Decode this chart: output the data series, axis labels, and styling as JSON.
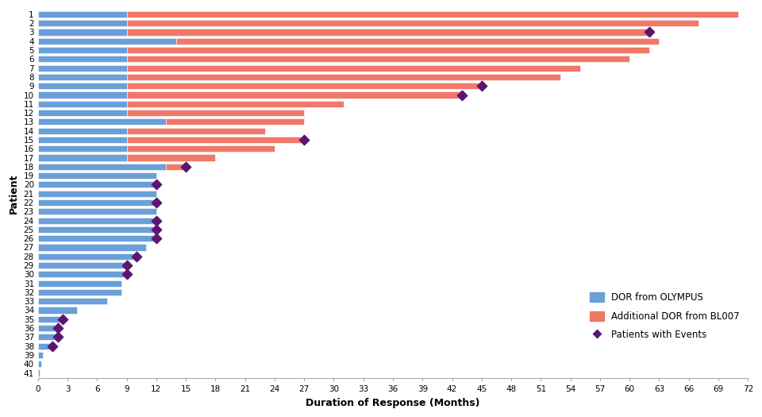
{
  "patients": [
    1,
    2,
    3,
    4,
    5,
    6,
    7,
    8,
    9,
    10,
    11,
    12,
    13,
    14,
    15,
    16,
    17,
    18,
    19,
    20,
    21,
    22,
    23,
    24,
    25,
    26,
    27,
    28,
    29,
    30,
    31,
    32,
    33,
    34,
    35,
    36,
    37,
    38,
    39,
    40,
    41
  ],
  "dor_olympus": [
    9,
    9,
    9,
    14,
    9,
    9,
    9,
    9,
    9,
    9,
    9,
    9,
    13,
    9,
    9,
    9,
    9,
    13,
    12,
    12,
    12,
    12,
    12,
    12,
    12,
    12,
    11,
    10,
    9,
    9,
    8.5,
    8.5,
    7,
    4,
    2.5,
    2,
    2,
    1.5,
    0.5,
    0.3,
    0.2
  ],
  "dor_bl007": [
    62,
    58,
    53,
    49,
    53,
    51,
    46,
    44,
    36,
    34,
    22,
    18,
    14,
    14,
    18,
    15,
    9,
    2,
    0,
    0,
    0,
    0,
    0,
    0,
    0,
    0,
    0,
    0,
    0,
    0,
    0,
    0,
    0,
    0,
    0,
    0,
    0,
    0,
    0,
    0,
    0
  ],
  "events": [
    {
      "patient": 3,
      "total": 62
    },
    {
      "patient": 9,
      "total": 45
    },
    {
      "patient": 10,
      "total": 43
    },
    {
      "patient": 15,
      "total": 27
    },
    {
      "patient": 18,
      "total": 15
    },
    {
      "patient": 20,
      "total": 12
    },
    {
      "patient": 22,
      "total": 12
    },
    {
      "patient": 24,
      "total": 12
    },
    {
      "patient": 25,
      "total": 12
    },
    {
      "patient": 26,
      "total": 12
    },
    {
      "patient": 28,
      "total": 10
    },
    {
      "patient": 29,
      "total": 9
    },
    {
      "patient": 30,
      "total": 9
    },
    {
      "patient": 35,
      "total": 2.5
    },
    {
      "patient": 36,
      "total": 2
    },
    {
      "patient": 37,
      "total": 2
    },
    {
      "patient": 38,
      "total": 1.5
    }
  ],
  "xlim": [
    0,
    72
  ],
  "xticks": [
    0,
    3,
    6,
    9,
    12,
    15,
    18,
    21,
    24,
    27,
    30,
    33,
    36,
    39,
    42,
    45,
    48,
    51,
    54,
    57,
    60,
    63,
    66,
    69,
    72
  ],
  "xlabel": "Duration of Response (Months)",
  "ylabel": "Patient",
  "color_olympus": "#6a9fd8",
  "color_bl007": "#f07868",
  "color_event": "#5c1570",
  "bg_color": "#ffffff"
}
